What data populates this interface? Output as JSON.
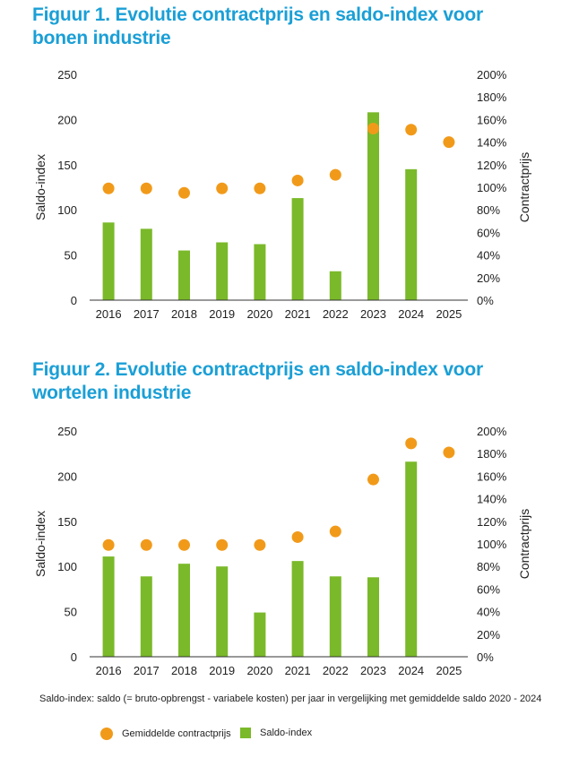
{
  "colors": {
    "title": "#1a9fd6",
    "bar": "#7ab929",
    "dot": "#f19a1a",
    "axis": "#333333"
  },
  "chart_data": [
    {
      "type": "bar+scatter",
      "title": "Figuur 1. Evolutie contractprijs en saldo-index voor bonen industrie",
      "categories": [
        "2016",
        "2017",
        "2018",
        "2019",
        "2020",
        "2021",
        "2022",
        "2023",
        "2024",
        "2025"
      ],
      "series": [
        {
          "name": "Saldo-index",
          "axis": "left",
          "kind": "bar",
          "values": [
            86,
            79,
            55,
            64,
            62,
            113,
            32,
            208,
            145,
            null
          ]
        },
        {
          "name": "Gemiddelde contractprijs",
          "axis": "right",
          "kind": "dot",
          "values": [
            99,
            99,
            95,
            99,
            99,
            106,
            111,
            152,
            151,
            140
          ]
        }
      ],
      "ylabel": "Saldo-index",
      "ylim": [
        0,
        250
      ],
      "yticks": [
        "0",
        "50",
        "100",
        "150",
        "200",
        "250"
      ],
      "y2label": "Contractprijs",
      "y2lim": [
        0,
        200
      ],
      "y2ticks": [
        "0%",
        "20%",
        "40%",
        "60%",
        "80%",
        "100%",
        "120%",
        "140%",
        "160%",
        "180%",
        "200%"
      ]
    },
    {
      "type": "bar+scatter",
      "title": "Figuur 2. Evolutie contractprijs en saldo-index voor wortelen industrie",
      "categories": [
        "2016",
        "2017",
        "2018",
        "2019",
        "2020",
        "2021",
        "2022",
        "2023",
        "2024",
        "2025"
      ],
      "series": [
        {
          "name": "Saldo-index",
          "axis": "left",
          "kind": "bar",
          "values": [
            111,
            89,
            103,
            100,
            49,
            106,
            89,
            88,
            216,
            null
          ]
        },
        {
          "name": "Gemiddelde contractprijs",
          "axis": "right",
          "kind": "dot",
          "values": [
            99,
            99,
            99,
            99,
            99,
            106,
            111,
            157,
            189,
            181
          ]
        }
      ],
      "ylabel": "Saldo-index",
      "ylim": [
        0,
        250
      ],
      "yticks": [
        "0",
        "50",
        "100",
        "150",
        "200",
        "250"
      ],
      "y2label": "Contractprijs",
      "y2lim": [
        0,
        200
      ],
      "y2ticks": [
        "0%",
        "20%",
        "40%",
        "60%",
        "80%",
        "100%",
        "120%",
        "140%",
        "160%",
        "180%",
        "200%"
      ]
    }
  ],
  "footnote": "Saldo-index: saldo (= bruto-opbrengst - variabele kosten) per jaar in vergelijking met gemiddelde saldo 2020 - 2024",
  "legend": {
    "dot_label": "Gemiddelde contractprijs",
    "bar_label": "Saldo-index"
  }
}
